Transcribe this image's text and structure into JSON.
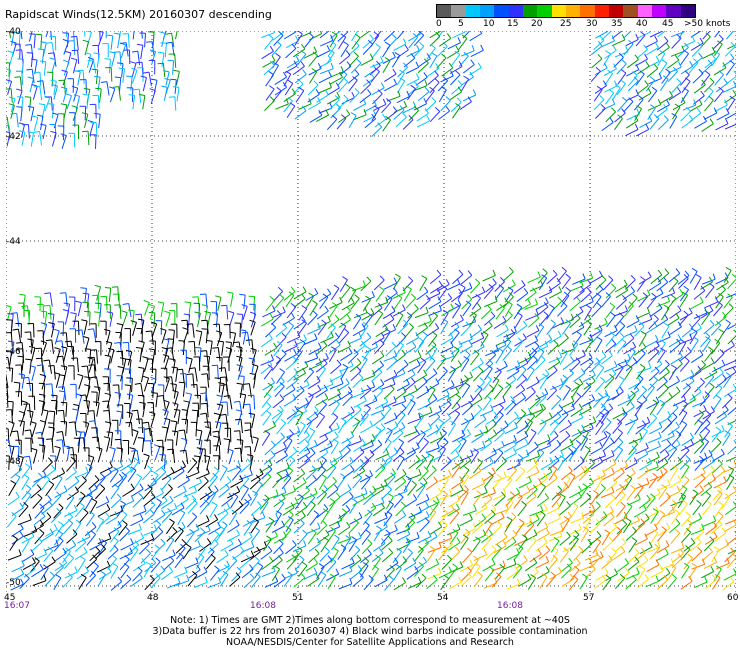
{
  "title": "Rapidscat Winds(12.5KM) 20160307 descending",
  "legend": {
    "colors": [
      "#5a5a5a",
      "#9a9a9a",
      "#00c8ff",
      "#00a0ff",
      "#0050ff",
      "#3030ff",
      "#00a000",
      "#00d000",
      "#ffe000",
      "#ffb000",
      "#ff7000",
      "#ff2000",
      "#c00000",
      "#a05020",
      "#ff60ff",
      "#c000ff",
      "#6000c0",
      "#300080"
    ],
    "labels": [
      "0",
      "5",
      "10",
      "15",
      "20",
      "25",
      "30",
      "35",
      "40",
      "45",
      ">50 knots"
    ]
  },
  "map": {
    "lat_ticks": [
      "-40",
      "-42",
      "-44",
      "-46",
      "-48",
      "-50"
    ],
    "lon_ticks": [
      "45",
      "48",
      "51",
      "54",
      "57",
      "60"
    ],
    "time_labels": [
      "16:07",
      "16:08",
      "16:08"
    ]
  },
  "notes": {
    "line1": "Note: 1) Times are GMT 2)Times along bottom correspond to measurement at ~40S",
    "line2": "3)Data buffer is 22 hrs from 20160307 4) Black wind barbs indicate possible contamination",
    "line3": "NOAA/NESDIS/Center for Satellite Applications and Research"
  }
}
